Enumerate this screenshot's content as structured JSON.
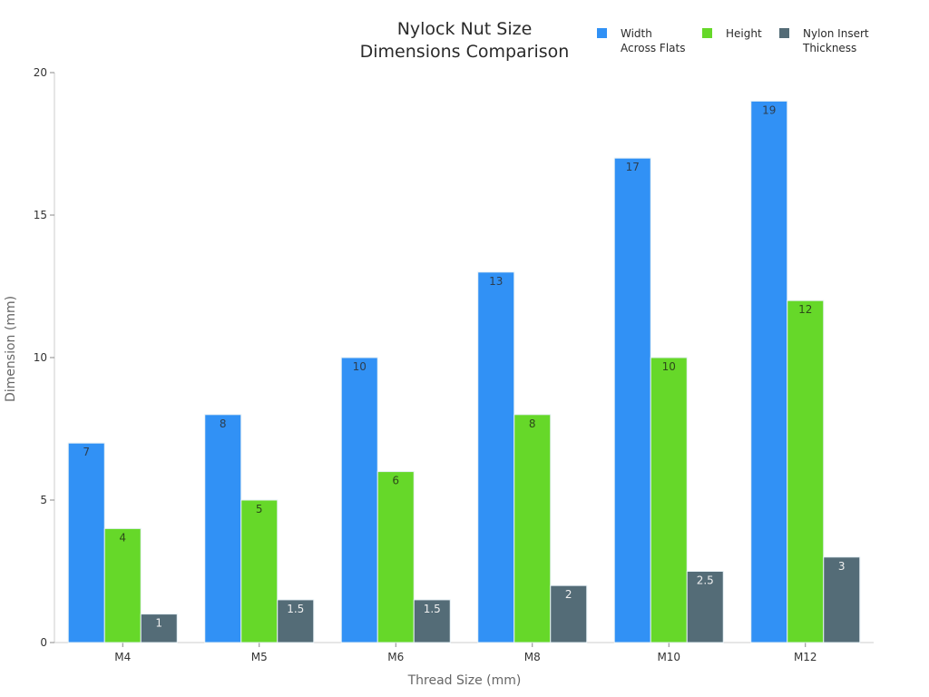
{
  "chart_data": {
    "type": "bar",
    "title": "Nylock Nut Size Dimensions Comparison",
    "title_lines": [
      "Nylock Nut Size",
      "Dimensions Comparison"
    ],
    "xlabel": "Thread Size (mm)",
    "ylabel": "Dimension (mm)",
    "ylim": [
      0,
      20
    ],
    "yticks": [
      0,
      5,
      10,
      15,
      20
    ],
    "grid": false,
    "legend_position": "top-right",
    "categories": [
      "M4",
      "M5",
      "M6",
      "M8",
      "M10",
      "M12"
    ],
    "series": [
      {
        "name": "Width Across Flats",
        "label_lines": [
          "Width",
          "Across Flats"
        ],
        "color": "#3191f5",
        "label_color": "#2d3e50",
        "values": [
          7,
          8,
          10,
          13,
          17,
          19
        ]
      },
      {
        "name": "Height",
        "label_lines": [
          "Height"
        ],
        "color": "#66d829",
        "label_color": "#2d4a1a",
        "values": [
          4,
          5,
          6,
          8,
          10,
          12
        ]
      },
      {
        "name": "Nylon Insert Thickness",
        "label_lines": [
          "Nylon Insert",
          "Thickness"
        ],
        "color": "#546c77",
        "label_color": "#f0f0f0",
        "values": [
          1,
          1.5,
          1.5,
          2,
          2.5,
          3
        ]
      }
    ]
  }
}
